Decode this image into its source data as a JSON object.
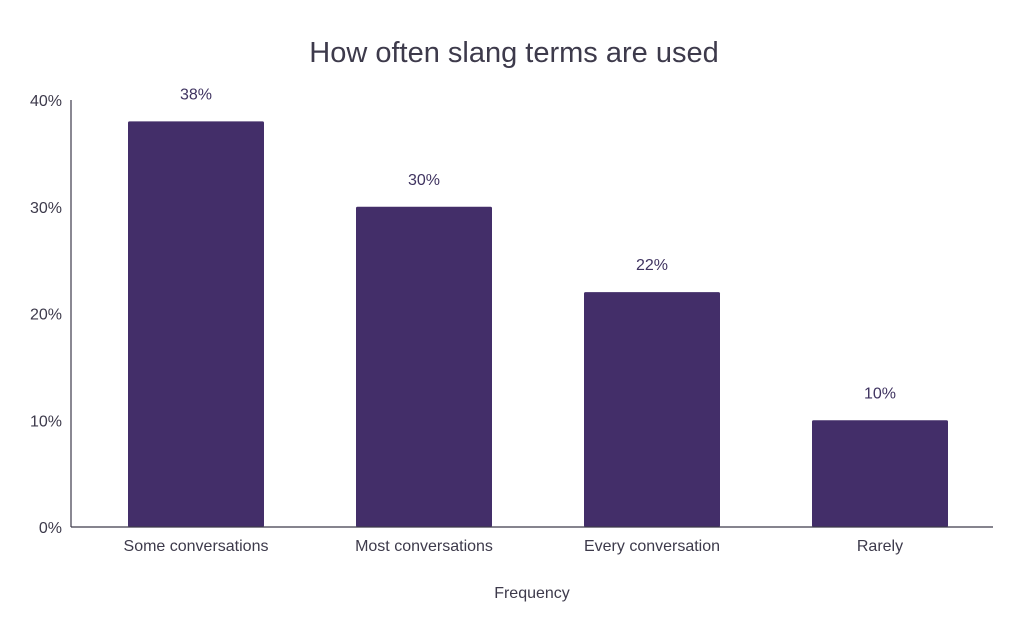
{
  "chart_data": {
    "type": "bar",
    "title": "How often slang terms are used",
    "xlabel": "Frequency",
    "ylabel": "",
    "categories": [
      "Some conversations",
      "Most conversations",
      "Every conversation",
      "Rarely"
    ],
    "values": [
      38,
      30,
      22,
      10
    ],
    "value_labels": [
      "38%",
      "30%",
      "22%",
      "10%"
    ],
    "ylim": [
      0,
      40
    ],
    "yticks": [
      0,
      10,
      20,
      30,
      40
    ],
    "ytick_labels": [
      "0%",
      "10%",
      "20%",
      "30%",
      "40%"
    ],
    "grid": false,
    "legend": "none",
    "bar_color": "#432e69"
  }
}
